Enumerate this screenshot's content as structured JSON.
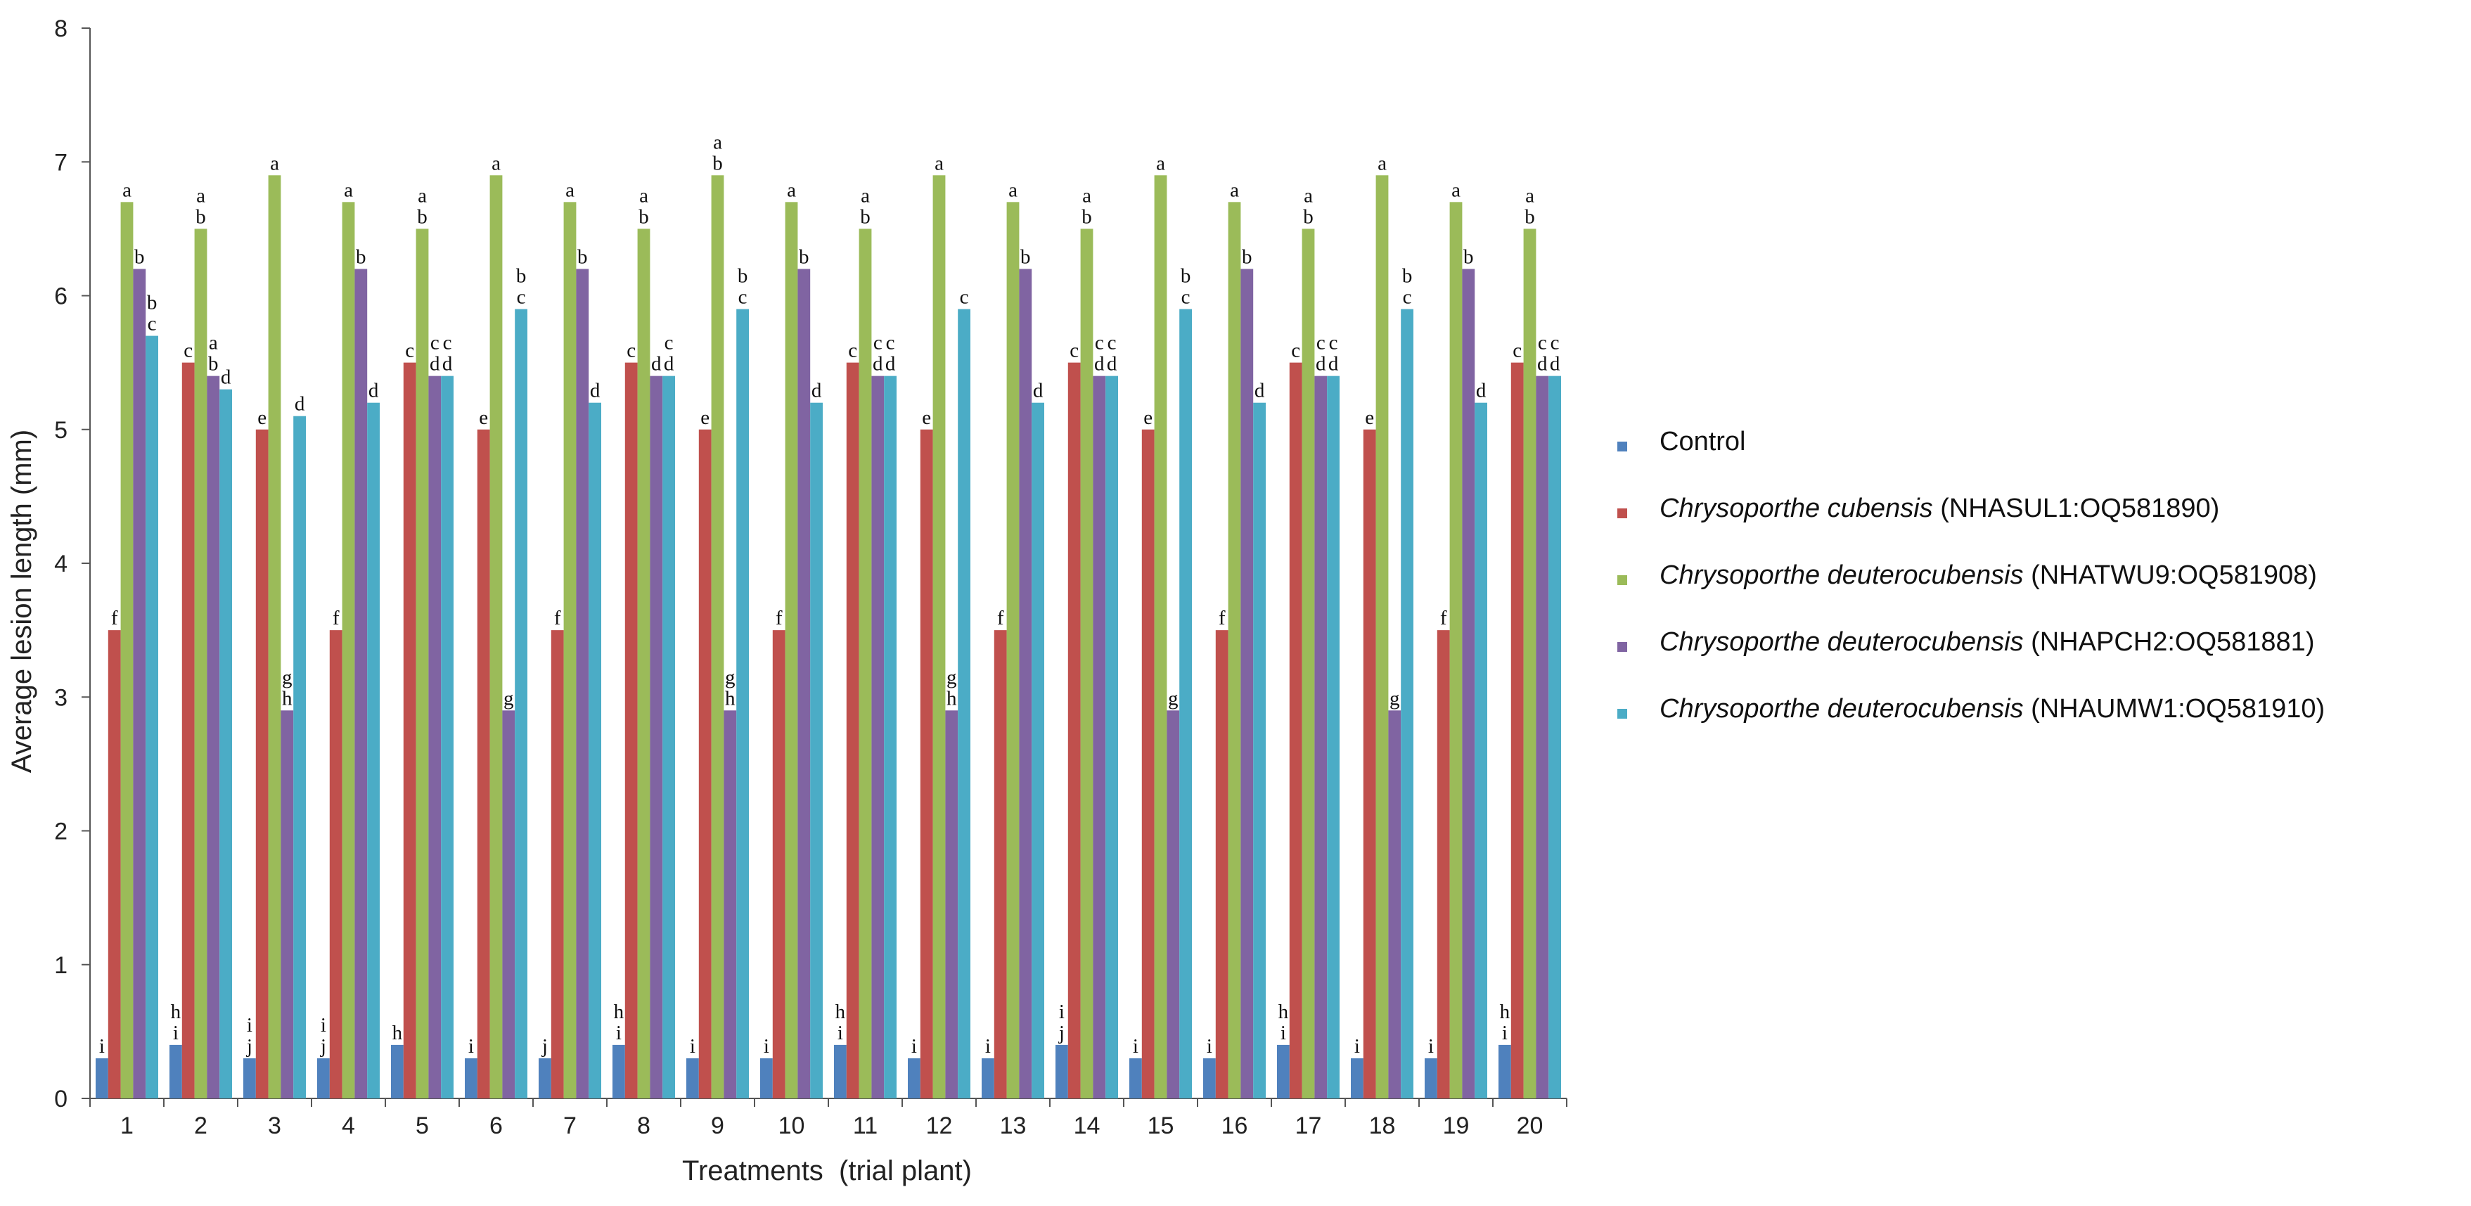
{
  "chart_data": {
    "type": "bar",
    "xlabel": "Treatments  (trial plant)",
    "ylabel": "Average lesion length (mm)",
    "ylim": [
      0,
      8
    ],
    "yticks": [
      "0",
      "1",
      "2",
      "3",
      "4",
      "5",
      "6",
      "7",
      "8"
    ],
    "categories": [
      "1",
      "2",
      "3",
      "4",
      "5",
      "6",
      "7",
      "8",
      "9",
      "10",
      "11",
      "12",
      "13",
      "14",
      "15",
      "16",
      "17",
      "18",
      "19",
      "20"
    ],
    "grid": false,
    "legend_position": "right",
    "series": [
      {
        "name": "Control",
        "italic": "",
        "code": "",
        "color": "#4f81bd",
        "values": [
          0.3,
          0.4,
          0.3,
          0.3,
          0.4,
          0.3,
          0.3,
          0.4,
          0.3,
          0.3,
          0.4,
          0.3,
          0.3,
          0.4,
          0.3,
          0.3,
          0.4,
          0.3,
          0.3,
          0.4
        ],
        "labels": [
          "i",
          "h\ni",
          "i\nj",
          "i\nj",
          "h",
          "i",
          "j",
          "h\ni",
          "i",
          "i",
          "h\ni",
          "i",
          "i",
          "i\nj",
          "i",
          "i",
          "h\ni",
          "i",
          "i",
          "h\ni"
        ]
      },
      {
        "name": "Chrysoporthe cubensis (NHASUL1:OQ581890)",
        "italic": "Chrysoporthe cubensis",
        "code": " (NHASUL1:OQ581890)",
        "color": "#c0504d",
        "values": [
          3.5,
          5.5,
          5.0,
          3.5,
          5.5,
          5.0,
          3.5,
          5.5,
          5.0,
          3.5,
          5.5,
          5.0,
          3.5,
          5.5,
          5.0,
          3.5,
          5.5,
          5.0,
          3.5,
          5.5
        ],
        "labels": [
          "f",
          "c",
          "e",
          "f",
          "c",
          "e",
          "f",
          "c",
          "e",
          "f",
          "c",
          "e",
          "f",
          "c",
          "e",
          "f",
          "c",
          "e",
          "f",
          "c"
        ]
      },
      {
        "name": "Chrysoporthe deuterocubensis (NHATWU9:OQ581908)",
        "italic": "Chrysoporthe deuterocubensis",
        "code": " (NHATWU9:OQ581908)",
        "color": "#9bbb59",
        "values": [
          6.7,
          6.5,
          6.9,
          6.7,
          6.5,
          6.9,
          6.7,
          6.5,
          6.9,
          6.7,
          6.5,
          6.9,
          6.7,
          6.5,
          6.9,
          6.7,
          6.5,
          6.9,
          6.7,
          6.5
        ],
        "labels": [
          "a",
          "a\nb",
          "a",
          "a",
          "a\nb",
          "a",
          "a",
          "a\nb",
          "a\nb",
          "a",
          "a\nb",
          "a",
          "a",
          "a\nb",
          "a",
          "a",
          "a\nb",
          "a",
          "a",
          "a\nb"
        ]
      },
      {
        "name": "Chrysoporthe deuterocubensis (NHAPCH2:OQ581881)",
        "italic": "Chrysoporthe deuterocubensis",
        "code": " (NHAPCH2:OQ581881)",
        "color": "#8064a2",
        "values": [
          6.2,
          5.4,
          2.9,
          6.2,
          5.4,
          2.9,
          6.2,
          5.4,
          2.9,
          6.2,
          5.4,
          2.9,
          6.2,
          5.4,
          2.9,
          6.2,
          5.4,
          2.9,
          6.2,
          5.4
        ],
        "labels": [
          "b",
          "a\nb",
          "g\nh",
          "b",
          "c\nd",
          "g",
          "b",
          "d",
          "g\nh",
          "b",
          "c\nd",
          "g\nh",
          "b",
          "c\nd",
          "g",
          "b",
          "c\nd",
          "g",
          "b",
          "c\nd"
        ]
      },
      {
        "name": "Chrysoporthe deuterocubensis (NHAUMW1:OQ581910)",
        "italic": "Chrysoporthe deuterocubensis",
        "code": " (NHAUMW1:OQ581910)",
        "color": "#4bacc6",
        "values": [
          5.7,
          5.3,
          5.1,
          5.2,
          5.4,
          5.9,
          5.2,
          5.4,
          5.9,
          5.2,
          5.4,
          5.9,
          5.2,
          5.4,
          5.9,
          5.2,
          5.4,
          5.9,
          5.2,
          5.4
        ],
        "labels": [
          "b\nc",
          "d",
          "d",
          "d",
          "c\nd",
          "b\nc",
          "d",
          "c\nd",
          "b\nc",
          "d",
          "c\nd",
          "c",
          "d",
          "c\nd",
          "b\nc",
          "d",
          "c\nd",
          "b\nc",
          "d",
          "c\nd"
        ]
      }
    ]
  }
}
